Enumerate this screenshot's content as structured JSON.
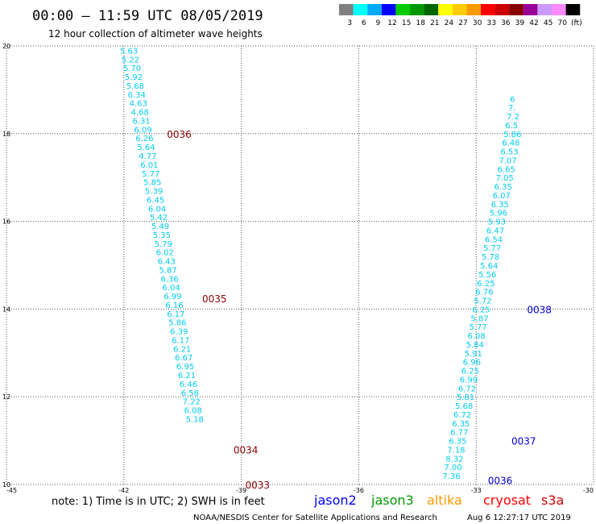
{
  "header": {
    "title": "00:00 – 11:59 UTC 08/05/2019",
    "subtitle": "12 hour collection of altimeter wave heights"
  },
  "legend": {
    "labels": [
      "3",
      "6",
      "9",
      "12",
      "15",
      "18",
      "21",
      "24",
      "27",
      "30",
      "33",
      "36",
      "39",
      "42",
      "45",
      "70",
      "(ft)"
    ],
    "colors": [
      "#7f7f7f",
      "#00ffff",
      "#00aaff",
      "#0000ff",
      "#00cc00",
      "#009900",
      "#006600",
      "#ffff00",
      "#ffcc00",
      "#ff9900",
      "#ff0000",
      "#cc0000",
      "#880000",
      "#990099",
      "#cc99ff",
      "#ff88ff",
      "#000000"
    ]
  },
  "footer": {
    "note": "note: 1) Time is in UTC; 2) SWH is in feet",
    "satellites": [
      {
        "name": "jason2",
        "color": "#0000ff"
      },
      {
        "name": "jason3",
        "color": "#009900"
      },
      {
        "name": "altika",
        "color": "#ff9900"
      },
      {
        "name": "cryosat",
        "color": "#ff0000"
      },
      {
        "name": "s3a",
        "color": "#cc0000"
      }
    ],
    "credit": "NOAA/NESDIS Center for Satellite Applications and Research",
    "timestamp": "Aug  6 12:27:17 UTC 2019"
  },
  "chart_data": {
    "type": "scatter",
    "title": "00:00 – 11:59 UTC 08/05/2019",
    "subtitle": "12 hour collection of altimeter wave heights",
    "xlabel": "",
    "ylabel": "",
    "xlim": [
      -45,
      -30
    ],
    "ylim": [
      10,
      20
    ],
    "x_ticks": [
      "-45",
      "-42",
      "-39",
      "-36",
      "-33",
      "-30"
    ],
    "x_tick_values": [
      -45,
      -42,
      -39,
      -36,
      -33,
      -30
    ],
    "y_ticks": [
      "10",
      "12",
      "14",
      "16",
      "18",
      "20"
    ],
    "y_tick_values": [
      10,
      12,
      14,
      16,
      18,
      20
    ],
    "grid": true,
    "series": [
      {
        "color": "#00ccee",
        "points": [
          {
            "x": -42.1,
            "y": 19.9,
            "label": "5.63"
          },
          {
            "x": -42.06,
            "y": 19.7,
            "label": "5.22"
          },
          {
            "x": -42.02,
            "y": 19.5,
            "label": "5.70"
          },
          {
            "x": -41.98,
            "y": 19.3,
            "label": "5.92"
          },
          {
            "x": -41.94,
            "y": 19.1,
            "label": "5.68"
          },
          {
            "x": -41.9,
            "y": 18.9,
            "label": "6.34"
          },
          {
            "x": -41.86,
            "y": 18.7,
            "label": "4.63"
          },
          {
            "x": -41.82,
            "y": 18.5,
            "label": "4.68"
          },
          {
            "x": -41.78,
            "y": 18.3,
            "label": "6.31"
          },
          {
            "x": -41.74,
            "y": 18.1,
            "label": "6.09"
          },
          {
            "x": -41.7,
            "y": 17.9,
            "label": "6.26"
          },
          {
            "x": -41.66,
            "y": 17.7,
            "label": "5.64"
          },
          {
            "x": -41.62,
            "y": 17.5,
            "label": "4.77"
          },
          {
            "x": -41.58,
            "y": 17.3,
            "label": "6.01"
          },
          {
            "x": -41.54,
            "y": 17.1,
            "label": "5.77"
          },
          {
            "x": -41.5,
            "y": 16.9,
            "label": "5.85"
          },
          {
            "x": -41.46,
            "y": 16.7,
            "label": "5.39"
          },
          {
            "x": -41.42,
            "y": 16.5,
            "label": "6.45"
          },
          {
            "x": -41.38,
            "y": 16.3,
            "label": "6.04"
          },
          {
            "x": -41.34,
            "y": 16.1,
            "label": "5.42"
          },
          {
            "x": -41.3,
            "y": 15.9,
            "label": "5.49"
          },
          {
            "x": -41.26,
            "y": 15.7,
            "label": "5.35"
          },
          {
            "x": -41.22,
            "y": 15.5,
            "label": "5.79"
          },
          {
            "x": -41.18,
            "y": 15.3,
            "label": "6.02"
          },
          {
            "x": -41.14,
            "y": 15.1,
            "label": "6.43"
          },
          {
            "x": -41.1,
            "y": 14.9,
            "label": "5.87"
          },
          {
            "x": -41.06,
            "y": 14.7,
            "label": "6.36"
          },
          {
            "x": -41.02,
            "y": 14.5,
            "label": "6.04"
          },
          {
            "x": -40.98,
            "y": 14.3,
            "label": "6.99"
          },
          {
            "x": -40.94,
            "y": 14.1,
            "label": "6.16"
          },
          {
            "x": -40.9,
            "y": 13.9,
            "label": "6.17"
          },
          {
            "x": -40.86,
            "y": 13.7,
            "label": "5.86"
          },
          {
            "x": -40.82,
            "y": 13.5,
            "label": "6.39"
          },
          {
            "x": -40.78,
            "y": 13.3,
            "label": "6.17"
          },
          {
            "x": -40.74,
            "y": 13.1,
            "label": "6.21"
          },
          {
            "x": -40.7,
            "y": 12.9,
            "label": "6.67"
          },
          {
            "x": -40.66,
            "y": 12.7,
            "label": "6.95"
          },
          {
            "x": -40.62,
            "y": 12.5,
            "label": "6.21"
          },
          {
            "x": -40.58,
            "y": 12.3,
            "label": "6.46"
          },
          {
            "x": -40.54,
            "y": 12.1,
            "label": "6.58"
          },
          {
            "x": -40.5,
            "y": 11.9,
            "label": "7.22"
          },
          {
            "x": -40.46,
            "y": 11.7,
            "label": "6.08"
          },
          {
            "x": -40.42,
            "y": 11.5,
            "label": "5.18"
          },
          {
            "x": -33.86,
            "y": 10.2,
            "label": "7.36"
          },
          {
            "x": -33.82,
            "y": 10.4,
            "label": "7.00"
          },
          {
            "x": -33.78,
            "y": 10.6,
            "label": "8.32"
          },
          {
            "x": -33.74,
            "y": 10.8,
            "label": "7.18"
          },
          {
            "x": -33.7,
            "y": 11.0,
            "label": "6.35"
          },
          {
            "x": -33.66,
            "y": 11.2,
            "label": "6.77"
          },
          {
            "x": -33.62,
            "y": 11.4,
            "label": "6.35"
          },
          {
            "x": -33.58,
            "y": 11.6,
            "label": "6.72"
          },
          {
            "x": -33.54,
            "y": 11.8,
            "label": "5.68"
          },
          {
            "x": -33.5,
            "y": 12.0,
            "label": "5.81"
          },
          {
            "x": -33.46,
            "y": 12.2,
            "label": "6.72"
          },
          {
            "x": -33.42,
            "y": 12.4,
            "label": "6.99"
          },
          {
            "x": -33.38,
            "y": 12.6,
            "label": "6.25"
          },
          {
            "x": -33.34,
            "y": 12.8,
            "label": "6.96"
          },
          {
            "x": -33.3,
            "y": 13.0,
            "label": "5.91"
          },
          {
            "x": -33.26,
            "y": 13.2,
            "label": "5.84"
          },
          {
            "x": -33.22,
            "y": 13.4,
            "label": "6.08"
          },
          {
            "x": -33.18,
            "y": 13.6,
            "label": "5.77"
          },
          {
            "x": -33.14,
            "y": 13.8,
            "label": "5.87"
          },
          {
            "x": -33.1,
            "y": 14.0,
            "label": "6.25"
          },
          {
            "x": -33.06,
            "y": 14.2,
            "label": "5.72"
          },
          {
            "x": -33.02,
            "y": 14.4,
            "label": "6.76"
          },
          {
            "x": -32.98,
            "y": 14.6,
            "label": "6.25"
          },
          {
            "x": -32.94,
            "y": 14.8,
            "label": "5.56"
          },
          {
            "x": -32.9,
            "y": 15.0,
            "label": "5.64"
          },
          {
            "x": -32.86,
            "y": 15.2,
            "label": "5.78"
          },
          {
            "x": -32.82,
            "y": 15.4,
            "label": "5.77"
          },
          {
            "x": -32.78,
            "y": 15.6,
            "label": "6.54"
          },
          {
            "x": -32.74,
            "y": 15.8,
            "label": "6.47"
          },
          {
            "x": -32.7,
            "y": 16.0,
            "label": "5.93"
          },
          {
            "x": -32.66,
            "y": 16.2,
            "label": "5.96"
          },
          {
            "x": -32.62,
            "y": 16.4,
            "label": "6.35"
          },
          {
            "x": -32.58,
            "y": 16.6,
            "label": "6.07"
          },
          {
            "x": -32.54,
            "y": 16.8,
            "label": "6.35"
          },
          {
            "x": -32.5,
            "y": 17.0,
            "label": "7.05"
          },
          {
            "x": -32.46,
            "y": 17.2,
            "label": "6.65"
          },
          {
            "x": -32.42,
            "y": 17.4,
            "label": "7.07"
          },
          {
            "x": -32.38,
            "y": 17.6,
            "label": "6.53"
          },
          {
            "x": -32.34,
            "y": 17.8,
            "label": "6.48"
          },
          {
            "x": -32.3,
            "y": 18.0,
            "label": "5.86"
          },
          {
            "x": -32.26,
            "y": 18.2,
            "label": "6.5"
          },
          {
            "x": -32.22,
            "y": 18.4,
            "label": "7.2"
          },
          {
            "x": -32.18,
            "y": 18.6,
            "label": "7."
          },
          {
            "x": -32.14,
            "y": 18.8,
            "label": "6"
          }
        ]
      }
    ],
    "pass_labels": [
      {
        "label": "0036",
        "x": -40.9,
        "y": 18.0,
        "color": "#880000"
      },
      {
        "label": "0035",
        "x": -40.0,
        "y": 14.25,
        "color": "#880000"
      },
      {
        "label": "0034",
        "x": -39.2,
        "y": 10.8,
        "color": "#880000"
      },
      {
        "label": "0033",
        "x": -38.9,
        "y": 10.0,
        "color": "#880000"
      },
      {
        "label": "0038",
        "x": -31.7,
        "y": 14.0,
        "color": "#0000cc"
      },
      {
        "label": "0037",
        "x": -32.1,
        "y": 11.0,
        "color": "#0000cc"
      },
      {
        "label": "0036",
        "x": -32.7,
        "y": 10.1,
        "color": "#0000cc"
      }
    ]
  }
}
